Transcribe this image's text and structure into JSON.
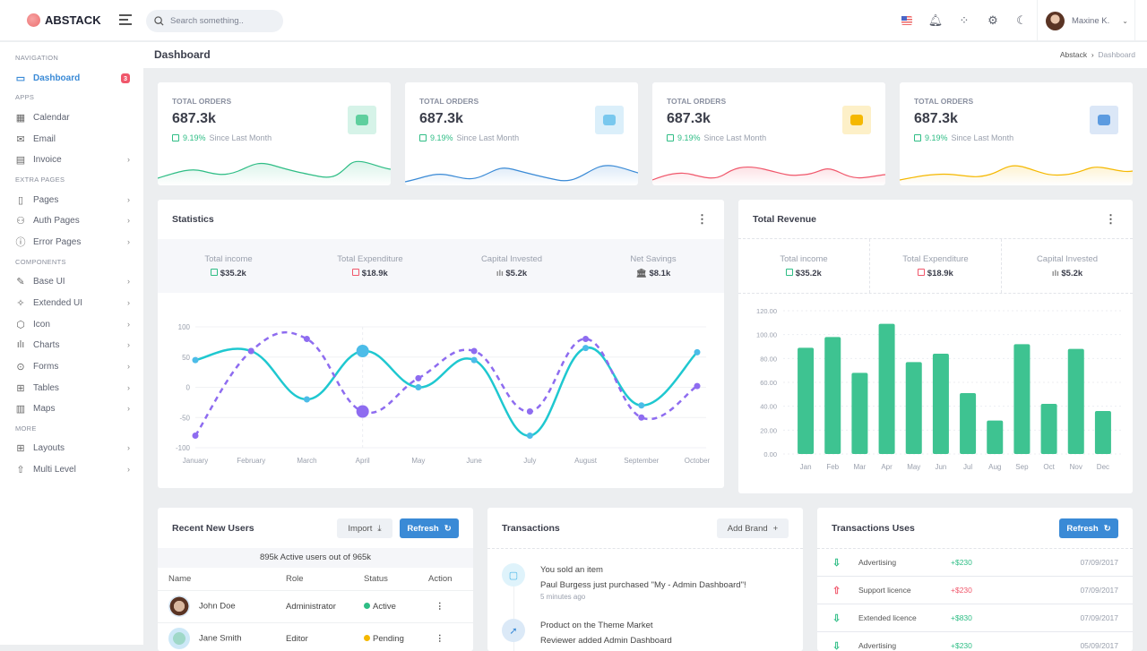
{
  "header": {
    "brand": "ABSTACK",
    "search_placeholder": "Search something..",
    "user_name": "Maxine K."
  },
  "sidebar": {
    "sections": [
      "NAVIGATION",
      "APPS",
      "EXTRA PAGES",
      "COMPONENTS",
      "MORE"
    ],
    "items": [
      {
        "label": "Dashboard",
        "badge": "3"
      },
      {
        "label": "Calendar"
      },
      {
        "label": "Email"
      },
      {
        "label": "Invoice"
      },
      {
        "label": "Pages"
      },
      {
        "label": "Auth Pages"
      },
      {
        "label": "Error Pages"
      },
      {
        "label": "Base UI"
      },
      {
        "label": "Extended UI"
      },
      {
        "label": "Icon"
      },
      {
        "label": "Charts"
      },
      {
        "label": "Forms"
      },
      {
        "label": "Tables"
      },
      {
        "label": "Maps"
      },
      {
        "label": "Layouts"
      },
      {
        "label": "Multi Level"
      }
    ]
  },
  "page": {
    "title": "Dashboard",
    "breadcrumb": [
      "Abstack",
      "Dashboard"
    ]
  },
  "stat_cards": [
    {
      "label": "TOTAL ORDERS",
      "value": "687.3k",
      "change": "9.19%",
      "since": "Since Last Month",
      "color": "#2ebd85"
    },
    {
      "label": "TOTAL ORDERS",
      "value": "687.3k",
      "change": "9.19%",
      "since": "Since Last Month",
      "color": "#3a8ad6"
    },
    {
      "label": "TOTAL ORDERS",
      "value": "687.3k",
      "change": "9.19%",
      "since": "Since Last Month",
      "color": "#f0576b"
    },
    {
      "label": "TOTAL ORDERS",
      "value": "687.3k",
      "change": "9.19%",
      "since": "Since Last Month",
      "color": "#f5b800"
    }
  ],
  "statistics": {
    "title": "Statistics",
    "summary": [
      {
        "label": "Total income",
        "value": "$35.2k"
      },
      {
        "label": "Total Expenditure",
        "value": "$18.9k"
      },
      {
        "label": "Capital Invested",
        "value": "$5.2k"
      },
      {
        "label": "Net Savings",
        "value": "$8.1k"
      }
    ]
  },
  "revenue": {
    "title": "Total Revenue",
    "summary": [
      {
        "label": "Total income",
        "value": "$35.2k"
      },
      {
        "label": "Total Expenditure",
        "value": "$18.9k"
      },
      {
        "label": "Capital Invested",
        "value": "$5.2k"
      }
    ]
  },
  "chart_data": [
    {
      "type": "line",
      "title": "Statistics",
      "categories": [
        "January",
        "February",
        "March",
        "April",
        "May",
        "June",
        "July",
        "August",
        "September",
        "October"
      ],
      "ylim": [
        -100,
        100
      ],
      "yticks": [
        "100",
        "50",
        "0",
        "-50",
        "-100"
      ],
      "grid": true,
      "series": [
        {
          "name": "solid",
          "color": "#1fc8d0",
          "values": [
            45,
            60,
            -20,
            60,
            0,
            45,
            -80,
            65,
            -30,
            58
          ]
        },
        {
          "name": "dashed",
          "color": "#8e6cf0",
          "values": [
            -80,
            60,
            80,
            -40,
            15,
            60,
            -40,
            80,
            -50,
            2
          ]
        }
      ]
    },
    {
      "type": "bar",
      "title": "Total Revenue",
      "categories": [
        "Jan",
        "Feb",
        "Mar",
        "Apr",
        "May",
        "Jun",
        "Jul",
        "Aug",
        "Sep",
        "Oct",
        "Nov",
        "Dec"
      ],
      "values": [
        89,
        98,
        68,
        109,
        77,
        84,
        51,
        28,
        92,
        42,
        88,
        36
      ],
      "ylim": [
        0,
        120
      ],
      "yticks": [
        "0.00",
        "20.00",
        "40.00",
        "60.00",
        "80.00",
        "100.00",
        "120.00"
      ],
      "color": "#3ec391",
      "grid": true
    }
  ],
  "users": {
    "title": "Recent New Users",
    "import_label": "Import",
    "refresh_label": "Refresh",
    "summary": "895k Active users out of 965k",
    "columns": [
      "Name",
      "Role",
      "Status",
      "Action"
    ],
    "rows": [
      {
        "name": "John Doe",
        "role": "Administrator",
        "status": "Active"
      },
      {
        "name": "Jane Smith",
        "role": "Editor",
        "status": "Pending"
      }
    ]
  },
  "transactions": {
    "title": "Transactions",
    "add_label": "Add Brand",
    "items": [
      {
        "title": "You sold an item",
        "text": "Paul Burgess just purchased \"My - Admin Dashboard\"!",
        "time": "5 minutes ago"
      },
      {
        "title": "Product on the Theme Market",
        "text": "Reviewer added Admin Dashboard"
      }
    ]
  },
  "trans_uses": {
    "title": "Transactions Uses",
    "refresh_label": "Refresh",
    "rows": [
      {
        "name": "Advertising",
        "amount": "+$230",
        "date": "07/09/2017",
        "dir": "down"
      },
      {
        "name": "Support licence",
        "amount": "+$230",
        "date": "07/09/2017",
        "dir": "up"
      },
      {
        "name": "Extended licence",
        "amount": "+$830",
        "date": "07/09/2017",
        "dir": "down"
      },
      {
        "name": "Advertising",
        "amount": "+$230",
        "date": "05/09/2017",
        "dir": "down"
      }
    ]
  }
}
